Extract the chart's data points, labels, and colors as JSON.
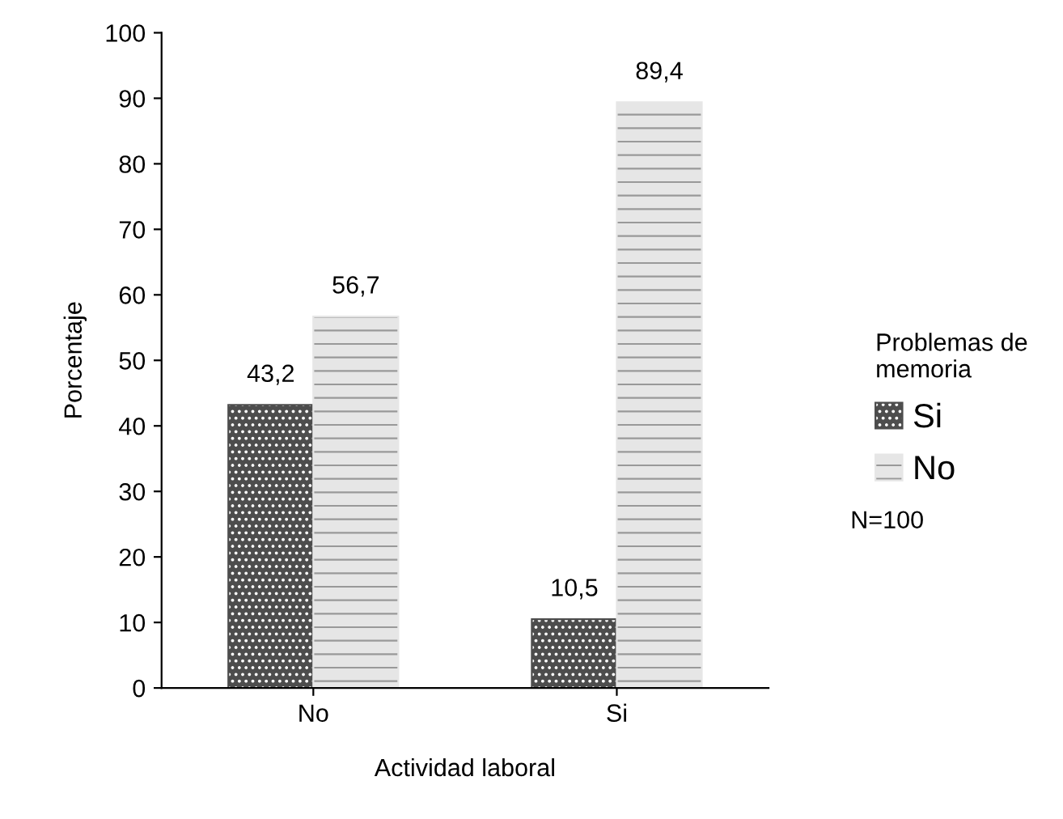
{
  "chart_data": {
    "type": "bar",
    "xlabel": "Actividad laboral",
    "ylabel": "Porcentaje",
    "legend_title": "Problemas de\nmemoria",
    "categories": [
      "No",
      "Si"
    ],
    "series": [
      {
        "name": "Si",
        "color": "#4d4d4d",
        "values": [
          43.2,
          10.5
        ],
        "value_labels": [
          "43,2",
          "10,5"
        ]
      },
      {
        "name": "No",
        "color": "#e6e6e6",
        "values": [
          56.7,
          89.4
        ],
        "value_labels": [
          "56,7",
          "89,4"
        ]
      }
    ],
    "ylim": [
      0,
      100
    ],
    "yticks": [
      0,
      10,
      20,
      30,
      40,
      50,
      60,
      70,
      80,
      90,
      100
    ],
    "grid": false,
    "legend": "right",
    "annotations": [
      "N=100"
    ]
  }
}
